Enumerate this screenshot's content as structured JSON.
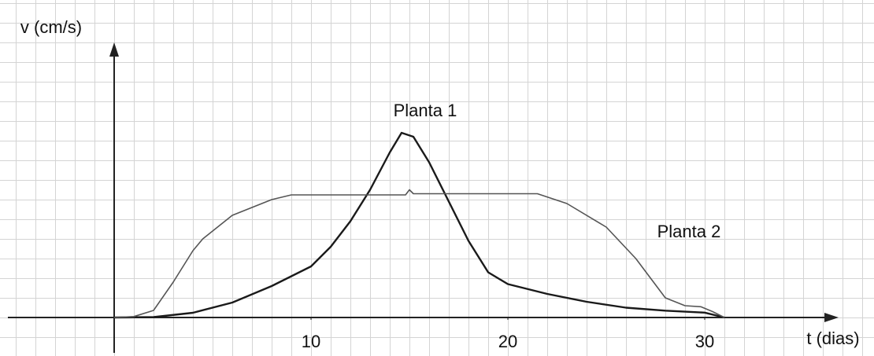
{
  "chart_data": {
    "type": "line",
    "xlabel": "t (dias)",
    "ylabel": "v (cm/s)",
    "xlim": [
      -5.4,
      36.8
    ],
    "ylim": [
      -1.8,
      14
    ],
    "xticks": [
      10,
      20,
      30
    ],
    "grid": true,
    "annotations": [
      "Planta 1",
      "Planta 2"
    ],
    "series": [
      {
        "name": "Planta 1",
        "color": "#1a1a1a",
        "x": [
          0,
          2,
          4,
          6,
          8,
          10,
          11,
          12,
          13,
          14,
          14.6,
          15.2,
          16,
          17,
          18,
          19,
          20,
          22,
          24,
          26,
          28,
          30,
          31
        ],
        "values": [
          0,
          0.02,
          0.24,
          0.76,
          1.6,
          2.6,
          3.6,
          4.9,
          6.5,
          8.4,
          9.4,
          9.2,
          7.9,
          5.9,
          3.9,
          2.3,
          1.7,
          1.2,
          0.8,
          0.5,
          0.35,
          0.25,
          0
        ]
      },
      {
        "name": "Planta 2",
        "color": "#555555",
        "x": [
          0,
          1,
          2,
          3,
          4,
          4.5,
          6,
          8,
          9,
          14.8,
          15,
          15.2,
          21.5,
          23,
          25,
          26.5,
          28,
          29,
          29.8,
          30.4,
          31
        ],
        "values": [
          0,
          0.05,
          0.36,
          1.8,
          3.4,
          4,
          5.2,
          6,
          6.24,
          6.24,
          6.5,
          6.3,
          6.3,
          5.8,
          4.6,
          3,
          1,
          0.6,
          0.55,
          0.3,
          0
        ]
      }
    ]
  }
}
